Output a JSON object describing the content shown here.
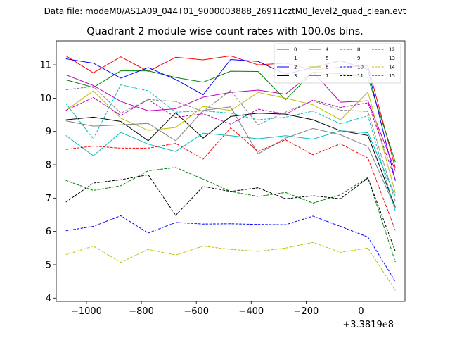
{
  "chart_data": {
    "type": "line",
    "suptitle": "Data file: modeM0/AS1A09_044T01_9000003888_26911cztM0_level2_quad_clean.evt",
    "title": "Quadrant 2 module wise count rates with 100.0s bins.",
    "xlabel": "",
    "ylabel": "",
    "x_offset_label": "+3.3819e8",
    "x": [
      -1075,
      -975,
      -875,
      -775,
      -675,
      -575,
      -475,
      -375,
      -275,
      -175,
      -75,
      25,
      125
    ],
    "xlim": [
      -1110,
      160
    ],
    "ylim": [
      3.9,
      11.72
    ],
    "xticks": [
      -1000,
      -800,
      -600,
      -400,
      -200,
      0
    ],
    "xtick_labels": [
      "−1000",
      "−800",
      "−600",
      "−400",
      "−200",
      "0"
    ],
    "yticks": [
      4,
      5,
      6,
      7,
      8,
      9,
      10,
      11
    ],
    "ytick_labels": [
      "4",
      "5",
      "6",
      "7",
      "8",
      "9",
      "10",
      "11"
    ],
    "grid": false,
    "legend_position": "top-right",
    "series": [
      {
        "name": "0",
        "color": "#ff0000",
        "dash": "solid",
        "values": [
          11.27,
          10.76,
          11.24,
          10.8,
          11.23,
          11.15,
          11.27,
          11.0,
          11.05,
          10.85,
          10.93,
          10.97,
          7.9
        ]
      },
      {
        "name": "1",
        "color": "#008000",
        "dash": "solid",
        "values": [
          10.55,
          10.32,
          10.82,
          10.82,
          10.62,
          10.48,
          10.81,
          10.8,
          9.95,
          10.78,
          10.73,
          10.62,
          8.08
        ]
      },
      {
        "name": "2",
        "color": "#0000ff",
        "dash": "solid",
        "values": [
          11.18,
          11.05,
          10.6,
          10.92,
          10.56,
          10.1,
          11.16,
          11.1,
          10.72,
          10.92,
          11.12,
          10.86,
          7.52
        ]
      },
      {
        "name": "3",
        "color": "#000000",
        "dash": "solid",
        "values": [
          9.35,
          9.43,
          9.3,
          8.72,
          9.56,
          8.8,
          9.45,
          9.55,
          9.52,
          9.35,
          9.02,
          8.88,
          6.72
        ]
      },
      {
        "name": "4",
        "color": "#bf00bf",
        "dash": "solid",
        "values": [
          10.7,
          10.38,
          9.9,
          9.62,
          9.68,
          10.03,
          10.17,
          10.24,
          10.12,
          10.78,
          9.88,
          9.92,
          7.82
        ]
      },
      {
        "name": "5",
        "color": "#00bfbf",
        "dash": "solid",
        "values": [
          8.88,
          8.27,
          8.97,
          8.62,
          8.4,
          8.95,
          8.87,
          8.78,
          8.87,
          8.77,
          9.02,
          8.96,
          7.06
        ]
      },
      {
        "name": "6",
        "color": "#bfbf00",
        "dash": "solid",
        "values": [
          9.63,
          10.22,
          9.4,
          9.03,
          9.12,
          9.75,
          9.63,
          10.17,
          10.0,
          9.8,
          9.35,
          10.18,
          7.15
        ]
      },
      {
        "name": "7",
        "color": "#808080",
        "dash": "solid",
        "values": [
          9.32,
          9.16,
          9.2,
          9.24,
          8.72,
          9.63,
          9.74,
          8.33,
          8.8,
          9.09,
          8.9,
          8.55,
          6.7
        ]
      },
      {
        "name": "8",
        "color": "#ff0000",
        "dash": "dashed",
        "values": [
          8.46,
          8.56,
          8.5,
          8.5,
          8.64,
          8.17,
          9.11,
          8.4,
          8.75,
          8.3,
          8.63,
          8.2,
          6.03
        ]
      },
      {
        "name": "9",
        "color": "#008000",
        "dash": "dashed",
        "values": [
          7.53,
          7.23,
          7.37,
          7.82,
          7.92,
          7.57,
          7.2,
          7.05,
          7.17,
          6.85,
          7.1,
          7.62,
          5.08
        ]
      },
      {
        "name": "10",
        "color": "#0000ff",
        "dash": "dashed",
        "values": [
          6.02,
          6.15,
          6.47,
          5.95,
          6.27,
          6.22,
          6.23,
          6.21,
          6.2,
          6.46,
          6.15,
          5.83,
          4.5
        ]
      },
      {
        "name": "11",
        "color": "#000000",
        "dash": "dashed",
        "values": [
          6.88,
          7.45,
          7.55,
          7.7,
          6.48,
          7.35,
          7.2,
          7.31,
          6.98,
          7.07,
          6.98,
          7.6,
          5.4
        ]
      },
      {
        "name": "12",
        "color": "#bf00bf",
        "dash": "dashed",
        "values": [
          9.63,
          10.02,
          9.48,
          9.96,
          9.42,
          9.53,
          9.22,
          9.67,
          9.52,
          9.94,
          9.72,
          9.86,
          7.55
        ]
      },
      {
        "name": "13",
        "color": "#00bfbf",
        "dash": "dashed",
        "values": [
          9.84,
          8.78,
          10.4,
          10.22,
          9.58,
          9.62,
          9.55,
          9.35,
          9.43,
          9.61,
          9.23,
          9.47,
          6.6
        ]
      },
      {
        "name": "14",
        "color": "#bfbf00",
        "dash": "dashed",
        "values": [
          5.3,
          5.56,
          5.07,
          5.46,
          5.29,
          5.56,
          5.46,
          5.4,
          5.5,
          5.67,
          5.37,
          5.5,
          4.23
        ]
      },
      {
        "name": "15",
        "color": "#808080",
        "dash": "dashed",
        "values": [
          10.25,
          10.35,
          9.55,
          9.96,
          9.9,
          9.6,
          10.23,
          9.2,
          9.58,
          9.92,
          9.64,
          9.6,
          6.9
        ]
      }
    ]
  }
}
